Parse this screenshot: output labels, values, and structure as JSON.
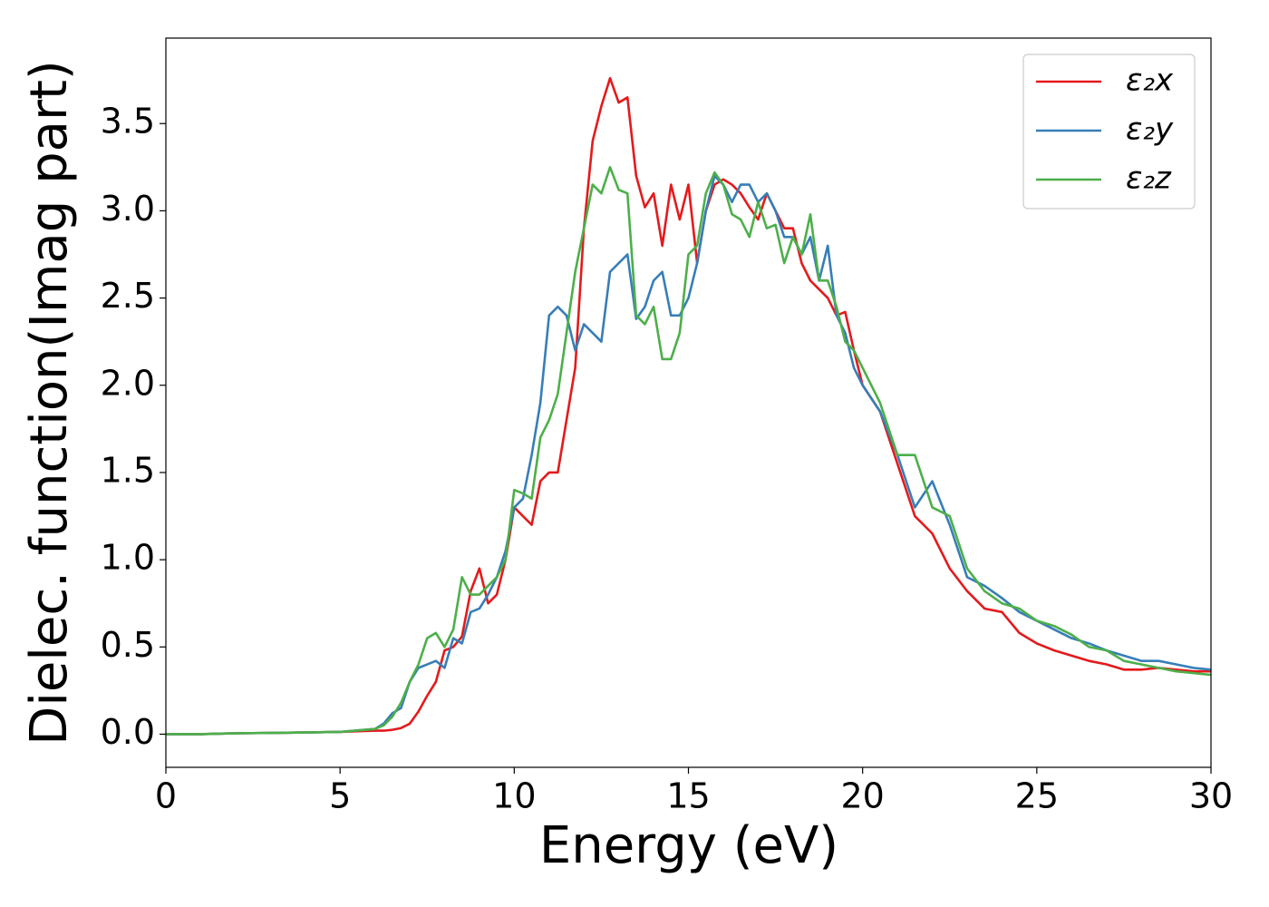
{
  "chart_data": {
    "type": "line",
    "xlabel": "Energy (eV)",
    "ylabel": "Dielec. function(Imag part)",
    "x": [
      0,
      1,
      2,
      3,
      4,
      5,
      6,
      6.25,
      6.5,
      6.75,
      7,
      7.25,
      7.5,
      7.75,
      8,
      8.25,
      8.5,
      8.75,
      9,
      9.25,
      9.5,
      9.75,
      10,
      10.25,
      10.5,
      10.75,
      11,
      11.25,
      11.5,
      11.75,
      12,
      12.25,
      12.5,
      12.75,
      13,
      13.25,
      13.5,
      13.75,
      14,
      14.25,
      14.5,
      14.75,
      15,
      15.25,
      15.5,
      15.75,
      16,
      16.25,
      16.5,
      16.75,
      17,
      17.25,
      17.5,
      17.75,
      18,
      18.25,
      18.5,
      18.75,
      19,
      19.25,
      19.5,
      19.75,
      20,
      20.5,
      21,
      21.5,
      22,
      22.5,
      23,
      23.5,
      24,
      24.5,
      25,
      25.5,
      26,
      26.5,
      27,
      27.5,
      28,
      28.5,
      29,
      29.5,
      30
    ],
    "series": [
      {
        "name": "ε₂x",
        "color": "#e41a1c",
        "values": [
          0,
          0,
          0.005,
          0.007,
          0.01,
          0.013,
          0.02,
          0.02,
          0.025,
          0.035,
          0.06,
          0.13,
          0.22,
          0.3,
          0.48,
          0.5,
          0.56,
          0.82,
          0.95,
          0.75,
          0.8,
          1.0,
          1.3,
          1.25,
          1.2,
          1.45,
          1.5,
          1.5,
          1.8,
          2.1,
          2.9,
          3.4,
          3.6,
          3.76,
          3.62,
          3.65,
          3.2,
          3.02,
          3.1,
          2.8,
          3.15,
          2.95,
          3.15,
          2.7,
          3.0,
          3.15,
          3.18,
          3.15,
          3.1,
          3.02,
          2.95,
          3.1,
          3.0,
          2.9,
          2.9,
          2.7,
          2.6,
          2.55,
          2.5,
          2.4,
          2.42,
          2.2,
          2.0,
          1.85,
          1.55,
          1.25,
          1.15,
          0.95,
          0.82,
          0.72,
          0.7,
          0.58,
          0.52,
          0.48,
          0.45,
          0.42,
          0.4,
          0.37,
          0.37,
          0.38,
          0.37,
          0.36,
          0.36
        ]
      },
      {
        "name": "ε₂y",
        "color": "#377eb8",
        "values": [
          0,
          0,
          0.005,
          0.007,
          0.01,
          0.013,
          0.03,
          0.06,
          0.12,
          0.15,
          0.3,
          0.38,
          0.4,
          0.42,
          0.38,
          0.55,
          0.52,
          0.7,
          0.72,
          0.8,
          0.9,
          1.05,
          1.3,
          1.35,
          1.6,
          1.9,
          2.4,
          2.45,
          2.4,
          2.2,
          2.35,
          2.3,
          2.25,
          2.65,
          2.7,
          2.75,
          2.38,
          2.45,
          2.6,
          2.65,
          2.4,
          2.4,
          2.5,
          2.7,
          3.0,
          3.2,
          3.15,
          3.05,
          3.15,
          3.15,
          3.05,
          3.1,
          3.0,
          2.85,
          2.85,
          2.75,
          2.85,
          2.6,
          2.8,
          2.4,
          2.3,
          2.1,
          2.0,
          1.85,
          1.6,
          1.3,
          1.45,
          1.2,
          0.9,
          0.85,
          0.78,
          0.7,
          0.65,
          0.6,
          0.55,
          0.52,
          0.48,
          0.45,
          0.42,
          0.42,
          0.4,
          0.38,
          0.37
        ]
      },
      {
        "name": "ε₂z",
        "color": "#4daf4a",
        "values": [
          0,
          0,
          0.005,
          0.007,
          0.01,
          0.013,
          0.03,
          0.05,
          0.1,
          0.18,
          0.3,
          0.4,
          0.55,
          0.58,
          0.5,
          0.6,
          0.9,
          0.8,
          0.8,
          0.85,
          0.9,
          1.0,
          1.4,
          1.38,
          1.35,
          1.7,
          1.8,
          1.95,
          2.3,
          2.65,
          2.9,
          3.15,
          3.1,
          3.25,
          3.12,
          3.1,
          2.4,
          2.35,
          2.45,
          2.15,
          2.15,
          2.3,
          2.75,
          2.8,
          3.1,
          3.22,
          3.15,
          2.98,
          2.95,
          2.85,
          3.05,
          2.9,
          2.92,
          2.7,
          2.85,
          2.75,
          2.98,
          2.6,
          2.6,
          2.45,
          2.25,
          2.2,
          2.1,
          1.9,
          1.6,
          1.6,
          1.3,
          1.25,
          0.95,
          0.82,
          0.75,
          0.72,
          0.65,
          0.62,
          0.57,
          0.5,
          0.48,
          0.42,
          0.4,
          0.38,
          0.36,
          0.35,
          0.34
        ]
      }
    ],
    "xlim": [
      0,
      30
    ],
    "xticks": [
      0,
      5,
      10,
      15,
      20,
      25,
      30
    ],
    "ylim": [
      -0.19,
      3.99
    ],
    "yticks": [
      {
        "value": 0,
        "label": "0.0"
      },
      0.5,
      {
        "value": 1,
        "label": "1.0"
      },
      1.5,
      {
        "value": 2,
        "label": "2.0"
      },
      2.5,
      {
        "value": 3,
        "label": "3.0"
      },
      3.5
    ],
    "grid": false,
    "legend": "upper right"
  }
}
